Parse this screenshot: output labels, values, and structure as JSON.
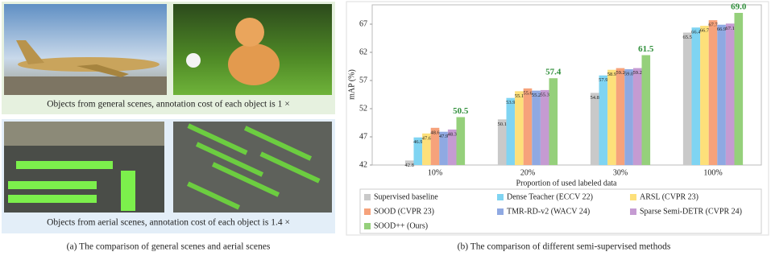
{
  "panel_a": {
    "caption_general": "Objects from general scenes, annotation cost of each object is 1 ×",
    "caption_aerial": "Objects from aerial scenes, annotation cost of each object is 1.4 ×",
    "caption": "(a) The comparison of general scenes and aerial scenes"
  },
  "chart_data": {
    "type": "bar",
    "caption": "(b) The comparison of different semi-supervised methods",
    "ylabel": "mAP (%)",
    "xlabel": "Proportion of used labeled data",
    "categories": [
      "10%",
      "20%",
      "30%",
      "100%"
    ],
    "ylim": [
      42,
      70
    ],
    "yticks": [
      42,
      47,
      52,
      57,
      62,
      67
    ],
    "series": [
      {
        "name": "Supervised baseline",
        "color": "#c9c9c9",
        "values": [
          42.8,
          50.1,
          54.8,
          65.5
        ],
        "value_labels": [
          "42.8",
          "50.1",
          "54.8",
          "65.5"
        ]
      },
      {
        "name": "Dense Teacher (ECCV 22)",
        "color": "#7fd4f2",
        "values": [
          46.9,
          53.9,
          57.9,
          66.4
        ],
        "value_labels": [
          "46.9",
          "53.9",
          "57.9",
          "66.4"
        ]
      },
      {
        "name": "ARSL (CVPR 23)",
        "color": "#fde07a",
        "values": [
          47.6,
          55.1,
          58.9,
          66.7
        ],
        "value_labels": [
          "47.6",
          "55.1",
          "58.9",
          "66.7"
        ]
      },
      {
        "name": "SOOD (CVPR 23)",
        "color": "#f6a27b",
        "values": [
          48.6,
          55.6,
          59.2,
          67.7
        ],
        "value_labels": [
          "48.6",
          "55.6",
          "59.2",
          "67.7"
        ]
      },
      {
        "name": "TMR-RD-v2 (WACV 24)",
        "color": "#8fa9e2",
        "values": [
          47.9,
          55.2,
          59.0,
          66.9
        ],
        "value_labels": [
          "47.9",
          "55.2",
          "59.0",
          "66.9"
        ]
      },
      {
        "name": "Sparse Semi-DETR (CVPR 24)",
        "color": "#c59bd2",
        "values": [
          48.3,
          55.3,
          59.2,
          67.1
        ],
        "value_labels": [
          "48.3",
          "55.3",
          "59.2",
          "67.1"
        ]
      },
      {
        "name": "SOOD++ (Ours)",
        "color": "#95d07b",
        "values": [
          50.5,
          57.4,
          61.5,
          69.0
        ],
        "value_labels": [
          "50.5",
          "57.4",
          "61.5",
          "69.0"
        ]
      }
    ]
  }
}
